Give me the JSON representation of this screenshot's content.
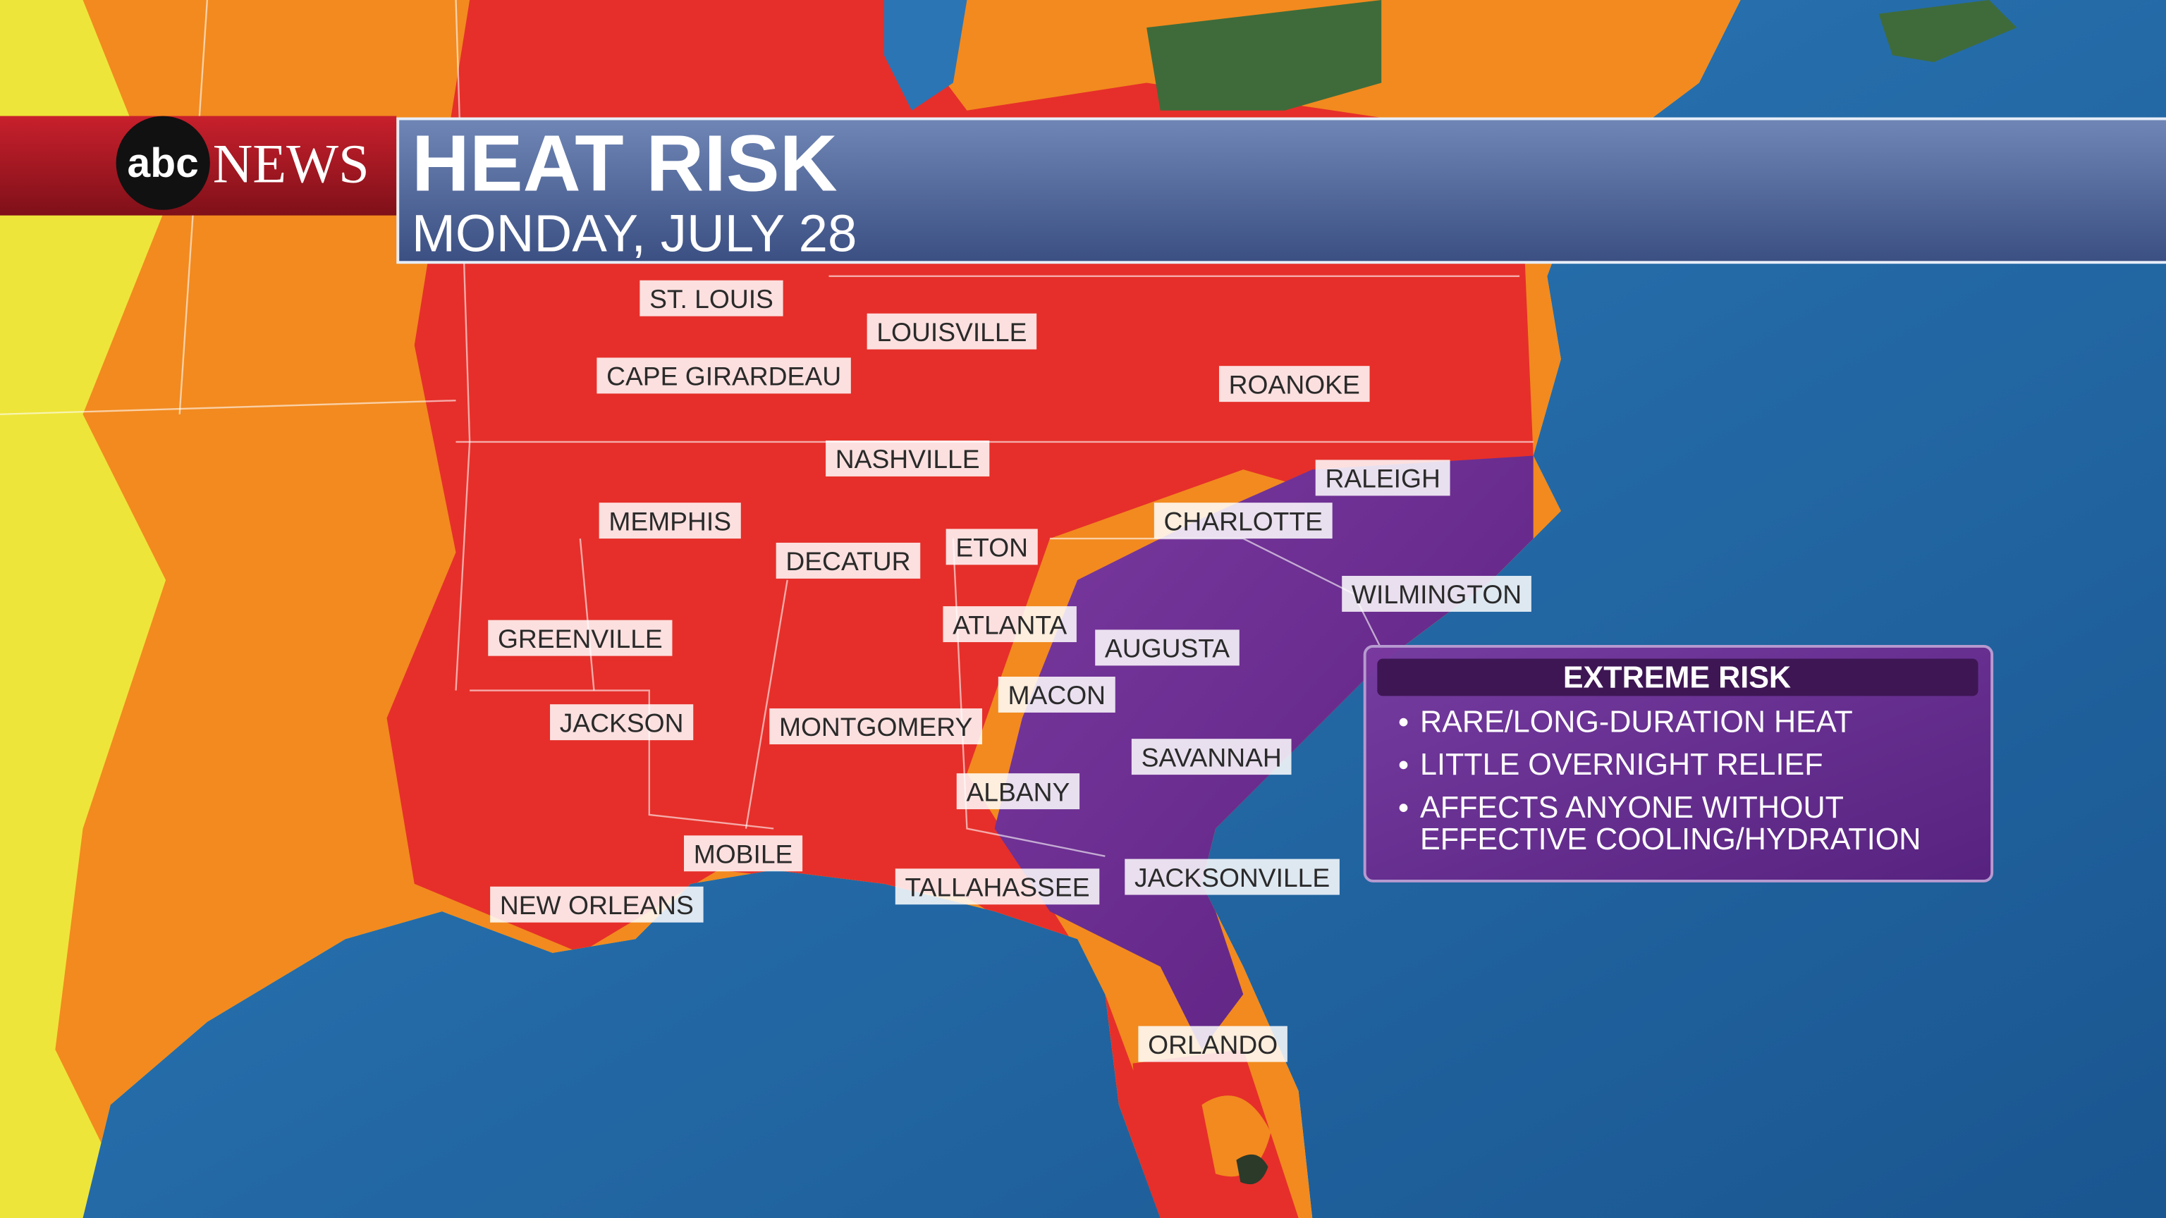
{
  "header": {
    "logo": {
      "mark": "abc",
      "word": "NEWS"
    },
    "title": "HEAT RISK",
    "subtitle": "MONDAY, JULY 28"
  },
  "cities": [
    "ST. LOUIS",
    "LOUISVILLE",
    "CAPE GIRARDEAU",
    "ROANOKE",
    "NASHVILLE",
    "RALEIGH",
    "MEMPHIS",
    "CHARLOTTE",
    "DECATUR",
    "ETON",
    "WILMINGTON",
    "ATLANTA",
    "AUGUSTA",
    "GREENVILLE",
    "MACON",
    "JACKSON",
    "MONTGOMERY",
    "SAVANNAH",
    "ALBANY",
    "MOBILE",
    "TALLAHASSEE",
    "JACKSONVILLE",
    "NEW ORLEANS",
    "ORLANDO"
  ],
  "legend": {
    "title": "EXTREME RISK",
    "bullets": [
      [
        "RARE/LONG-DURATION HEAT"
      ],
      [
        "LITTLE OVERNIGHT RELIEF"
      ],
      [
        "AFFECTS ANYONE WITHOUT",
        "EFFECTIVE COOLING/HYDRATION"
      ]
    ]
  }
}
